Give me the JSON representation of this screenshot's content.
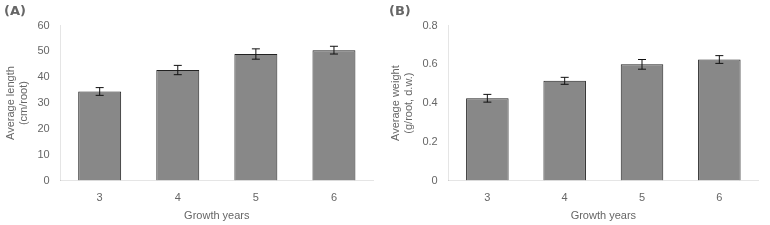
{
  "chart_data": [
    {
      "type": "bar",
      "title": "(A)",
      "categories": [
        "3",
        "4",
        "5",
        "6"
      ],
      "values": [
        34.5,
        42.8,
        49.0,
        50.5
      ],
      "errors": [
        1.5,
        1.8,
        2.0,
        1.5
      ],
      "xlabel": "Growth years",
      "ylabel": "Average length\n(cm/root)",
      "ylim": [
        0,
        60
      ],
      "yticks": [
        0,
        10,
        20,
        30,
        40,
        50,
        60
      ],
      "color": "#888888",
      "grid": false
    },
    {
      "type": "bar",
      "title": "(B)",
      "categories": [
        "3",
        "4",
        "5",
        "6"
      ],
      "values": [
        0.425,
        0.515,
        0.6,
        0.625
      ],
      "errors": [
        0.02,
        0.018,
        0.025,
        0.02
      ],
      "xlabel": "Growth years",
      "ylabel": "Average weight\n(g/root, d.w.)",
      "ylim": [
        0,
        0.8
      ],
      "yticks": [
        0,
        0.2,
        0.4,
        0.6,
        0.8
      ],
      "color": "#888888",
      "grid": false
    }
  ]
}
